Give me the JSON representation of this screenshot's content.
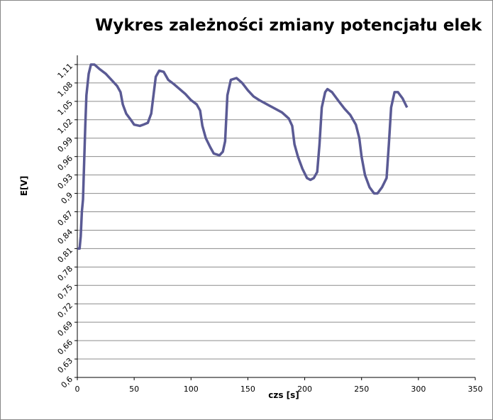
{
  "chart_data": {
    "type": "line",
    "title": "Wykres zależności zmiany potencjału elek",
    "x_label": "czs [s]",
    "y_label": "E[V]",
    "xlim": [
      0,
      350
    ],
    "xticks": [
      0,
      50,
      100,
      150,
      200,
      250,
      300,
      350
    ],
    "ylim": [
      0.6,
      1.125
    ],
    "yticks": [
      {
        "value": 0.6,
        "label": "0,6"
      },
      {
        "value": 0.63,
        "label": "0,63"
      },
      {
        "value": 0.66,
        "label": "0,66"
      },
      {
        "value": 0.69,
        "label": "0,69"
      },
      {
        "value": 0.72,
        "label": "0,72"
      },
      {
        "value": 0.75,
        "label": "0,75"
      },
      {
        "value": 0.78,
        "label": "0,78"
      },
      {
        "value": 0.81,
        "label": "0,81"
      },
      {
        "value": 0.84,
        "label": "0,84"
      },
      {
        "value": 0.87,
        "label": "0,87"
      },
      {
        "value": 0.9,
        "label": "0,9"
      },
      {
        "value": 0.93,
        "label": "0,93"
      },
      {
        "value": 0.96,
        "label": "0,96"
      },
      {
        "value": 0.99,
        "label": "0,99"
      },
      {
        "value": 1.02,
        "label": "1,02"
      },
      {
        "value": 1.05,
        "label": "1,05"
      },
      {
        "value": 1.08,
        "label": "1,08"
      },
      {
        "value": 1.11,
        "label": "1,11"
      }
    ],
    "grid": true,
    "series": [
      {
        "color": "#5a5a94",
        "x": [
          0,
          2,
          3,
          4,
          5,
          6,
          7,
          8,
          10,
          12,
          15,
          20,
          25,
          30,
          35,
          38,
          40,
          43,
          47,
          50,
          55,
          58,
          62,
          65,
          67,
          69,
          72,
          76,
          80,
          85,
          90,
          95,
          100,
          105,
          108,
          110,
          113,
          117,
          120,
          125,
          128,
          130,
          132,
          135,
          140,
          145,
          150,
          155,
          160,
          170,
          180,
          186,
          189,
          191,
          194,
          198,
          202,
          205,
          208,
          211,
          213,
          215,
          218,
          220,
          224,
          230,
          235,
          240,
          245,
          248,
          250,
          253,
          257,
          261,
          264,
          268,
          272,
          274,
          276,
          279,
          282,
          286,
          290
        ],
        "values": [
          0.81,
          0.81,
          0.83,
          0.87,
          0.89,
          0.95,
          1.01,
          1.06,
          1.095,
          1.11,
          1.11,
          1.102,
          1.095,
          1.085,
          1.075,
          1.065,
          1.045,
          1.03,
          1.02,
          1.012,
          1.01,
          1.012,
          1.015,
          1.03,
          1.06,
          1.09,
          1.1,
          1.098,
          1.085,
          1.078,
          1.07,
          1.062,
          1.052,
          1.045,
          1.035,
          1.01,
          0.99,
          0.975,
          0.965,
          0.962,
          0.968,
          0.985,
          1.06,
          1.085,
          1.088,
          1.08,
          1.068,
          1.058,
          1.052,
          1.042,
          1.032,
          1.022,
          1.01,
          0.98,
          0.96,
          0.94,
          0.925,
          0.922,
          0.925,
          0.935,
          0.98,
          1.04,
          1.065,
          1.07,
          1.065,
          1.05,
          1.038,
          1.028,
          1.012,
          0.99,
          0.96,
          0.93,
          0.91,
          0.9,
          0.9,
          0.91,
          0.925,
          0.98,
          1.04,
          1.065,
          1.065,
          1.055,
          1.04
        ]
      }
    ]
  }
}
